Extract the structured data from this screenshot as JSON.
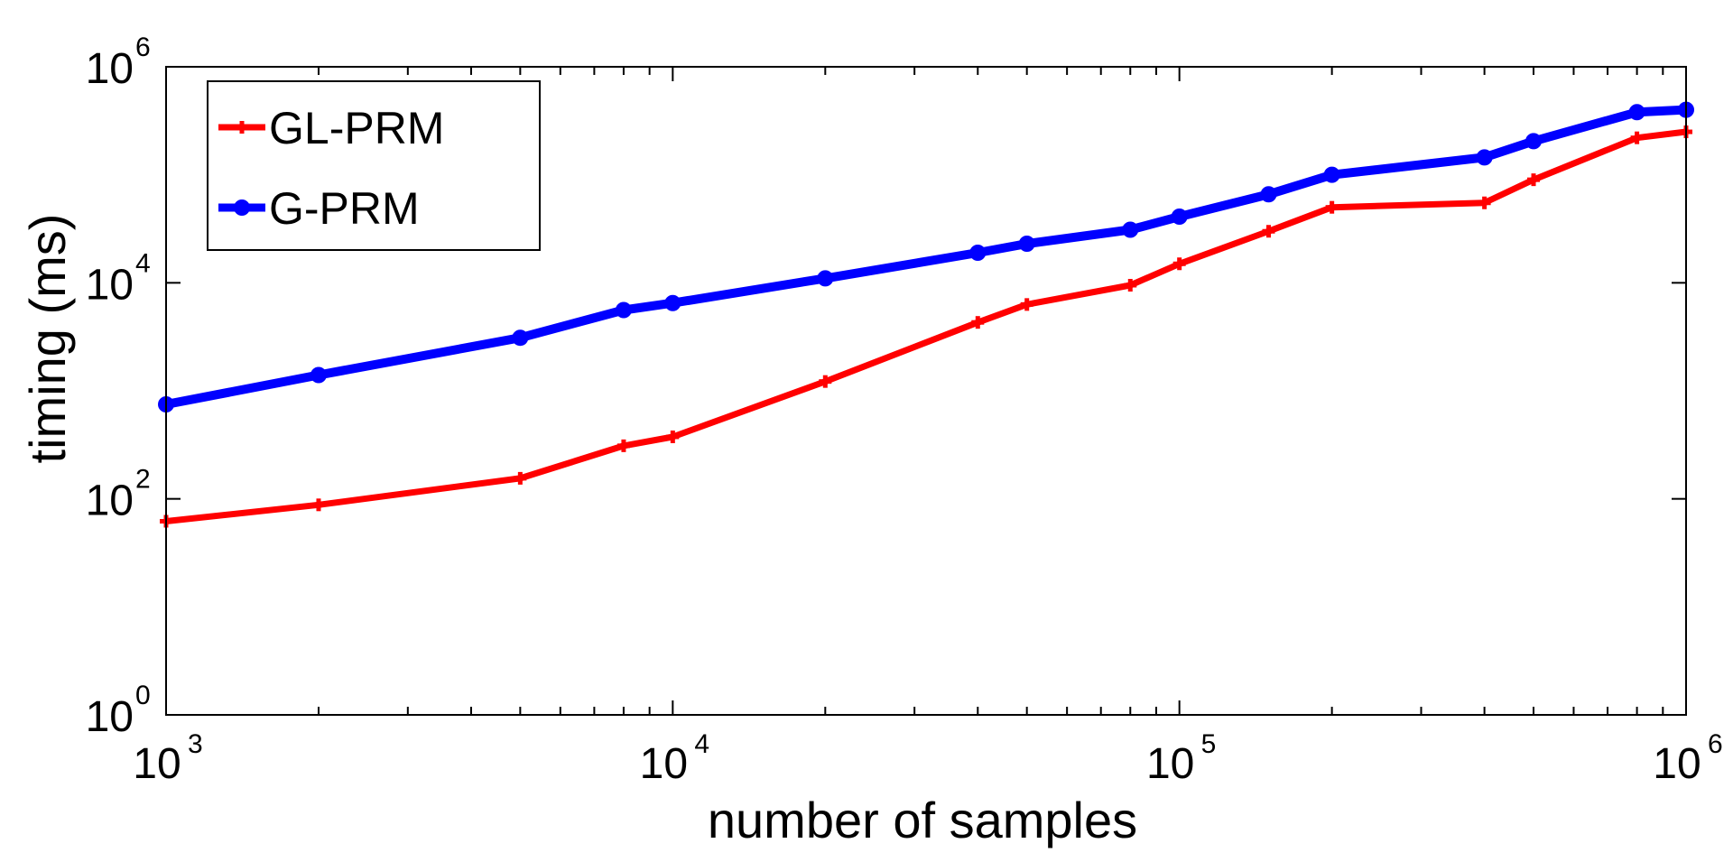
{
  "chart_data": {
    "type": "line",
    "title": "",
    "xlabel": "number of samples",
    "ylabel": "timing (ms)",
    "xscale": "log",
    "yscale": "log",
    "xlim": [
      1000,
      1000000
    ],
    "ylim": [
      1,
      1000000
    ],
    "x_ticks": [
      {
        "base": "10",
        "exp": "3",
        "value": 1000
      },
      {
        "base": "10",
        "exp": "4",
        "value": 10000
      },
      {
        "base": "10",
        "exp": "5",
        "value": 100000
      },
      {
        "base": "10",
        "exp": "6",
        "value": 1000000
      }
    ],
    "y_ticks": [
      {
        "base": "10",
        "exp": "0",
        "value": 1
      },
      {
        "base": "10",
        "exp": "2",
        "value": 100
      },
      {
        "base": "10",
        "exp": "4",
        "value": 10000
      },
      {
        "base": "10",
        "exp": "6",
        "value": 1000000
      }
    ],
    "grid": false,
    "legend_position": "top-left",
    "series": [
      {
        "name": "GL-PRM",
        "color": "#ff0000",
        "marker": "plus",
        "x": [
          1000,
          2000,
          5000,
          8000,
          10000,
          20000,
          40000,
          50000,
          80000,
          100000,
          150000,
          200000,
          400000,
          500000,
          800000,
          1000000
        ],
        "y": [
          62,
          88,
          155,
          310,
          375,
          1220,
          4300,
          6300,
          9500,
          15000,
          30000,
          50000,
          55000,
          90000,
          220000,
          250000
        ]
      },
      {
        "name": "G-PRM",
        "color": "#0000ff",
        "marker": "circle",
        "x": [
          1000,
          2000,
          5000,
          8000,
          10000,
          20000,
          40000,
          50000,
          80000,
          100000,
          150000,
          200000,
          400000,
          500000,
          800000,
          1000000
        ],
        "y": [
          750,
          1400,
          3100,
          5600,
          6500,
          11000,
          19000,
          23000,
          31000,
          41000,
          66000,
          100000,
          145000,
          205000,
          380000,
          400000
        ]
      }
    ]
  }
}
